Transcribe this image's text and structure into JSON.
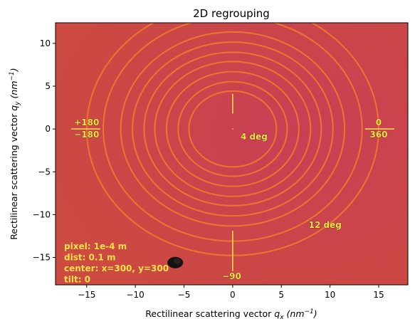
{
  "chart_data": {
    "type": "heatmap",
    "title": "2D regrouping",
    "xlabel_text": "Rectilinear scattering vector ",
    "xlabel_var": "q",
    "xlabel_sub": "x",
    "xlabel_unit": " (nm",
    "xlabel_exp": "−1",
    "xlabel_close": ")",
    "ylabel_text": "Rectilinear scattering vector ",
    "ylabel_var": "q",
    "ylabel_sub": "y",
    "ylabel_unit": " (nm",
    "ylabel_exp": "−1",
    "ylabel_close": ")",
    "xlim": [
      -18.2,
      18.0
    ],
    "ylim": [
      -18.2,
      12.4
    ],
    "xticks": [
      -15,
      -10,
      -5,
      0,
      5,
      10,
      15
    ],
    "yticks": [
      -15,
      -10,
      -5,
      0,
      5,
      10
    ],
    "xtick_labels": [
      "−15",
      "−10",
      "−5",
      "0",
      "5",
      "10",
      "15"
    ],
    "ytick_labels": [
      "−15",
      "−10",
      "−5",
      "0",
      "5",
      "10"
    ],
    "background_color": "#c8404f",
    "ring_color": "#f07a2c",
    "ring_radii": [
      4.5,
      5.6,
      6.8,
      8.0,
      9.1,
      10.3,
      11.5,
      13.3,
      15.0
    ],
    "ring_ry_factor": 0.985,
    "beamstop": {
      "x": -5.9,
      "y": -15.6
    },
    "annotations": [
      {
        "text": "+180",
        "x": -15.0,
        "y": 0.75
      },
      {
        "text": "−180",
        "x": -15.0,
        "y": -0.65
      },
      {
        "text": "0",
        "x": 15.0,
        "y": 0.75
      },
      {
        "text": "360",
        "x": 15.0,
        "y": -0.65
      },
      {
        "text": "4 deg",
        "x": 2.2,
        "y": -0.9
      },
      {
        "text": "12 deg",
        "x": 9.5,
        "y": -11.2
      },
      {
        "text": "−90",
        "x": -0.1,
        "y": -17.2
      }
    ],
    "info_lines": [
      "pixel: 1e-4 m",
      "dist: 0.1 m",
      "center: x=300, y=300",
      "tilt: 0"
    ],
    "colors": {
      "text_yellow": "#ffe24a",
      "ring": "#f07a2c",
      "background": "#c8404f"
    }
  }
}
